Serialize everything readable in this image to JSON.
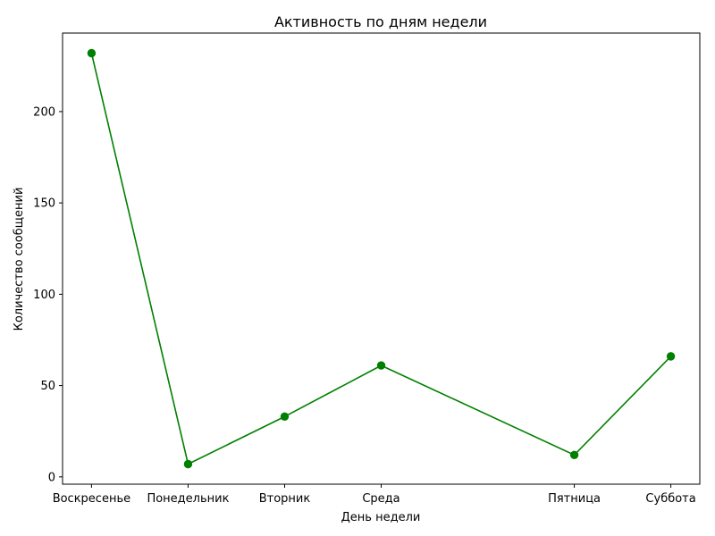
{
  "chart_data": {
    "type": "line",
    "title": "Активность по дням недели",
    "xlabel": "День недели",
    "ylabel": "Количество сообщений",
    "x": [
      0,
      1,
      2,
      3,
      5,
      6
    ],
    "categories": [
      "Воскресенье",
      "Понедельник",
      "Вторник",
      "Среда",
      "Пятница",
      "Суббота"
    ],
    "values": [
      232,
      7,
      33,
      61,
      12,
      66
    ],
    "xlim": [
      -0.3,
      6.3
    ],
    "ylim": [
      -4,
      243
    ],
    "yticks": [
      0,
      50,
      100,
      150,
      200
    ],
    "color": "#008000",
    "grid": false,
    "legend": "none"
  }
}
